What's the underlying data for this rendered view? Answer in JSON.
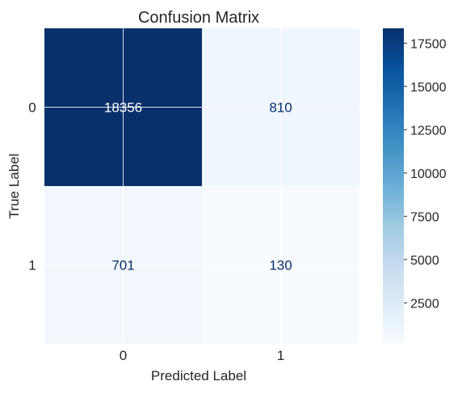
{
  "chart_data": {
    "type": "heatmap",
    "title": "Confusion Matrix",
    "xlabel": "Predicted Label",
    "ylabel": "True Label",
    "x_categories": [
      "0",
      "1"
    ],
    "y_categories": [
      "0",
      "1"
    ],
    "matrix": [
      [
        18356,
        810
      ],
      [
        701,
        130
      ]
    ],
    "colormap": "Blues",
    "colorbar": {
      "range": [
        130,
        18356
      ],
      "ticks": [
        2500,
        5000,
        7500,
        10000,
        12500,
        15000,
        17500
      ],
      "tick_labels": [
        "2500",
        "5000",
        "7500",
        "10000",
        "12500",
        "15000",
        "17500"
      ]
    },
    "grid": true,
    "colors": {
      "low": "#f7fbff",
      "high": "#08306b",
      "text_dark": "#08306b",
      "text_light": "#ffffff",
      "grid": "#ffffff"
    }
  }
}
